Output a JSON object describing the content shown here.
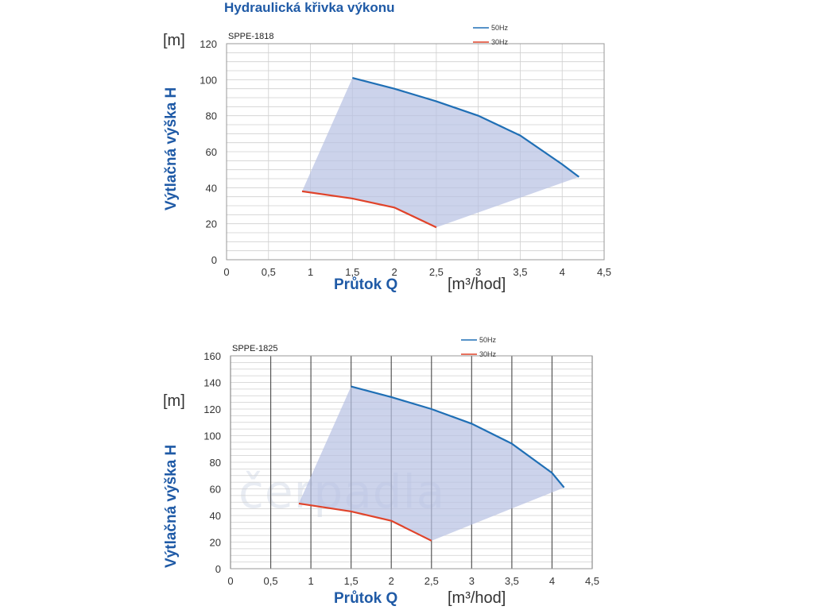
{
  "title": "Hydraulická křivka výkonu",
  "y_unit": "[m]",
  "x_unit": "[m³/hod]",
  "watermark": "čerpadla",
  "colors": {
    "fill": "#b7c1e2",
    "series50": "#1f6fb5",
    "series30": "#e0432a",
    "grid": "#cfcfcf",
    "axis_text": "#333333"
  },
  "chart_data": [
    {
      "type": "line",
      "title": "SPPE-1818",
      "xlabel": "Průtok Q",
      "ylabel": "Výtlačná výška H",
      "xlim": [
        0,
        4.5
      ],
      "ylim": [
        0,
        120
      ],
      "x_ticks": [
        "0",
        "0,5",
        "1",
        "1,5",
        "2",
        "2,5",
        "3",
        "3,5",
        "4",
        "4,5"
      ],
      "y_ticks": [
        "0",
        "20",
        "40",
        "60",
        "80",
        "100",
        "120"
      ],
      "legend": [
        "50Hz",
        "30Hz"
      ],
      "legend_position": "top-right",
      "series": [
        {
          "name": "50Hz",
          "x": [
            1.5,
            2.0,
            2.5,
            3.0,
            3.5,
            4.0,
            4.2
          ],
          "y": [
            101,
            95,
            88,
            80,
            69,
            53,
            46
          ]
        },
        {
          "name": "30Hz",
          "x": [
            0.9,
            1.5,
            2.0,
            2.5
          ],
          "y": [
            38,
            34,
            29,
            18
          ]
        }
      ]
    },
    {
      "type": "line",
      "title": "SPPE-1825",
      "xlabel": "Průtok Q",
      "ylabel": "Výtlačná výška H",
      "xlim": [
        0,
        4.5
      ],
      "ylim": [
        0,
        160
      ],
      "x_ticks": [
        "0",
        "0,5",
        "1",
        "1,5",
        "2",
        "2,5",
        "3",
        "3,5",
        "4",
        "4,5"
      ],
      "y_ticks": [
        "0",
        "20",
        "40",
        "60",
        "80",
        "100",
        "120",
        "140",
        "160"
      ],
      "legend": [
        "50Hz",
        "30Hz"
      ],
      "legend_position": "top-right",
      "series": [
        {
          "name": "50Hz",
          "x": [
            1.5,
            2.0,
            2.5,
            3.0,
            3.5,
            4.0,
            4.15
          ],
          "y": [
            137,
            129,
            120,
            109,
            94,
            72,
            61
          ]
        },
        {
          "name": "30Hz",
          "x": [
            0.85,
            1.5,
            2.0,
            2.5
          ],
          "y": [
            49,
            43,
            36,
            21
          ]
        }
      ]
    }
  ]
}
